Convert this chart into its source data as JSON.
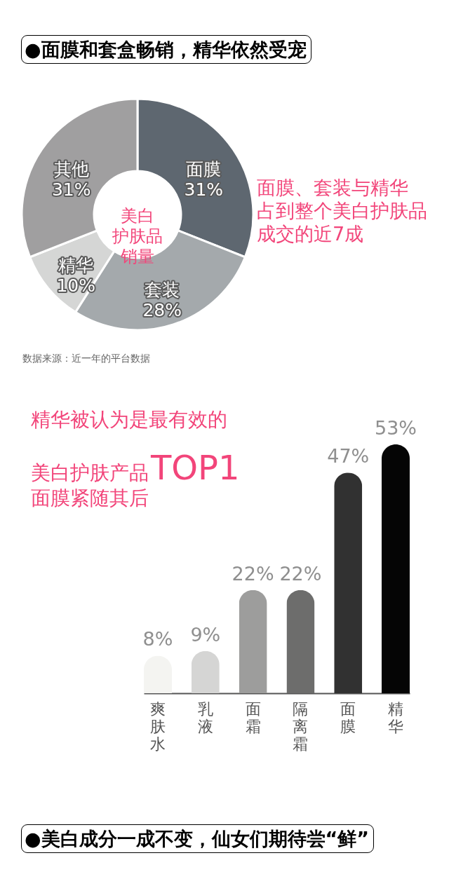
{
  "chart_data": [
    {
      "type": "donut",
      "title": "●面膜和套盒畅销，精华依然受宠",
      "categories": [
        "面膜",
        "套装",
        "精华",
        "其他"
      ],
      "values": [
        31,
        28,
        10,
        31
      ],
      "value_labels": [
        "31%",
        "28%",
        "10%",
        "31%"
      ],
      "colors": [
        "#5e6770",
        "#a4a9ac",
        "#d5d6d5",
        "#a09fa0"
      ],
      "annotations": [
        "美白护肤品销量",
        "面膜、套装与精华占到整个美白护肤品成交的近7成",
        "数据来源：近一年的平台数据"
      ]
    },
    {
      "type": "bar",
      "categories": [
        "爽肤水",
        "乳液",
        "面霜",
        "隔离霜",
        "面膜",
        "精华"
      ],
      "values": [
        8,
        9,
        22,
        22,
        47,
        53
      ],
      "value_labels": [
        "8%",
        "9%",
        "22%",
        "22%",
        "47%",
        "53%"
      ],
      "colors": [
        "#f4f4f1",
        "#d5d5d4",
        "#9d9d9c",
        "#6d6d6c",
        "#313131",
        "#050505"
      ],
      "annotations": [
        "精华被认为是最有效的",
        "美白护肤产品",
        "TOP1",
        "面膜紧随其后"
      ]
    },
    {
      "type": "other",
      "title": "●美白成分一成不变，仙女们期待尝“鲜”"
    }
  ]
}
